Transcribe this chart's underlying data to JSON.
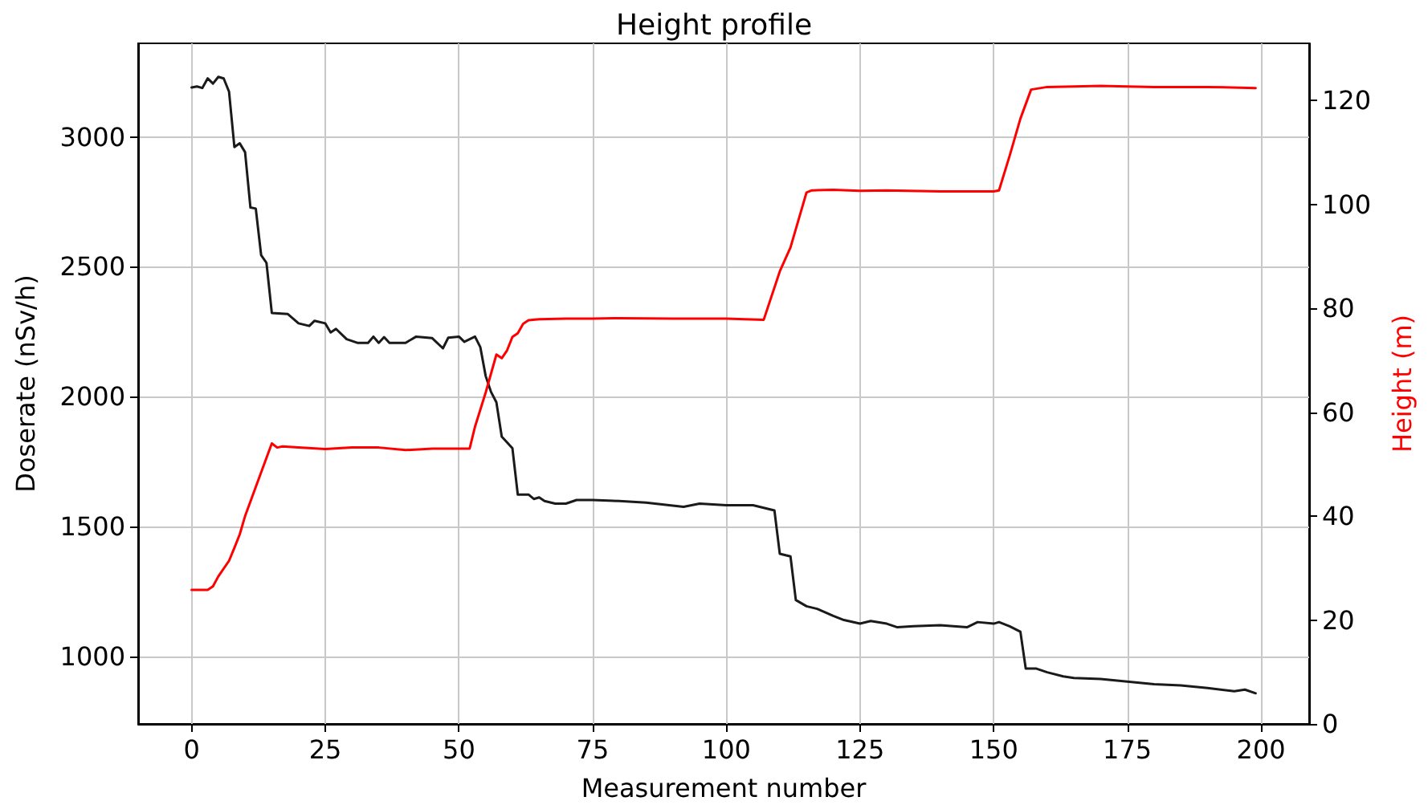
{
  "chart_data": {
    "type": "line",
    "title": "Height profile",
    "xlabel": "Measurement number",
    "ylabel": "Doserate (nSv/h)",
    "y2label": "Height (m)",
    "xlim": [
      -10,
      209
    ],
    "xticks": [
      0,
      25,
      50,
      75,
      100,
      125,
      150,
      175,
      200
    ],
    "ylim": [
      740,
      3360
    ],
    "yticks": [
      1000,
      1500,
      2000,
      2500,
      3000
    ],
    "y2lim": [
      0,
      131
    ],
    "y2ticks": [
      0,
      20,
      40,
      60,
      80,
      100,
      120
    ],
    "grid": true,
    "marker": "none",
    "line_style": "solid",
    "series": [
      {
        "color": "#1a1a1a",
        "x": [
          0,
          1,
          2,
          3,
          4,
          5,
          6,
          7,
          8,
          9,
          10,
          11,
          12,
          13,
          14,
          15,
          18,
          20,
          22,
          23,
          25,
          26,
          27,
          29,
          31,
          33,
          34,
          35,
          36,
          37,
          40,
          42,
          45,
          47,
          48,
          50,
          51,
          53,
          54,
          55,
          56,
          57,
          58,
          60,
          61,
          63,
          64,
          65,
          66,
          68,
          70,
          72,
          75,
          80,
          85,
          92,
          95,
          100,
          105,
          107,
          109,
          110,
          112,
          113,
          115,
          117,
          120,
          122,
          125,
          127,
          130,
          132,
          135,
          140,
          145,
          147,
          150,
          151,
          153,
          155,
          156,
          158,
          160,
          163,
          165,
          170,
          175,
          180,
          185,
          190,
          195,
          197,
          199
        ],
        "values": [
          3190,
          3194,
          3188,
          3225,
          3205,
          3231,
          3225,
          3174,
          2961,
          2975,
          2941,
          2728,
          2724,
          2545,
          2515,
          2322,
          2318,
          2282,
          2272,
          2292,
          2282,
          2247,
          2261,
          2221,
          2207,
          2207,
          2231,
          2207,
          2229,
          2207,
          2207,
          2231,
          2225,
          2186,
          2227,
          2231,
          2211,
          2231,
          2190,
          2079,
          2018,
          1978,
          1846,
          1801,
          1623,
          1623,
          1606,
          1612,
          1598,
          1588,
          1588,
          1602,
          1602,
          1598,
          1592,
          1576,
          1588,
          1582,
          1582,
          1572,
          1562,
          1395,
          1385,
          1217,
          1193,
          1183,
          1156,
          1140,
          1126,
          1136,
          1126,
          1112,
          1116,
          1120,
          1112,
          1132,
          1126,
          1132,
          1116,
          1095,
          953,
          953,
          939,
          923,
          917,
          913,
          903,
          893,
          888,
          878,
          866,
          872,
          858
        ]
      },
      {
        "color": "#ff0000",
        "axis": "y2",
        "x": [
          0,
          3,
          4,
          5,
          7,
          8,
          9,
          10,
          12,
          14,
          15,
          16,
          17,
          20,
          25,
          30,
          35,
          40,
          45,
          50,
          52,
          53,
          55,
          57,
          58,
          59,
          60,
          61,
          62,
          63,
          65,
          70,
          75,
          80,
          90,
          100,
          107,
          110,
          112,
          115,
          116,
          120,
          125,
          130,
          140,
          150,
          151,
          153,
          155,
          157,
          160,
          170,
          180,
          190,
          199
        ],
        "values": [
          25.8,
          25.8,
          26.5,
          28.4,
          31.4,
          33.9,
          36.5,
          40,
          45.6,
          51.2,
          54,
          53.2,
          53.4,
          53.2,
          52.9,
          53.2,
          53.2,
          52.7,
          53,
          53,
          53,
          57.2,
          63.8,
          71.1,
          70.4,
          71.9,
          74.5,
          75.2,
          77,
          77.7,
          77.9,
          78,
          78,
          78.1,
          78,
          78,
          77.8,
          87.1,
          91.7,
          102.3,
          102.7,
          102.8,
          102.6,
          102.7,
          102.5,
          102.5,
          102.7,
          109.4,
          116.5,
          122.1,
          122.6,
          122.8,
          122.6,
          122.6,
          122.4
        ]
      }
    ]
  }
}
